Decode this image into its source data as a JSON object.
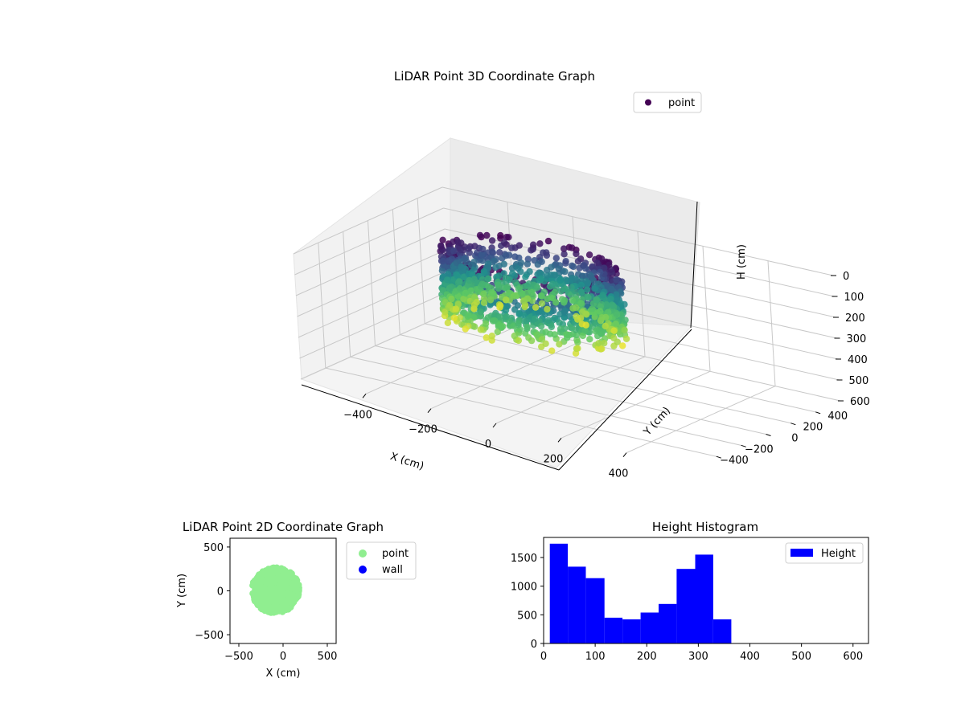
{
  "chart_data": [
    {
      "type": "scatter",
      "projection": "3d",
      "title": "LiDAR Point 3D Coordinate Graph",
      "xlabel": "X (cm)",
      "ylabel": "Y (cm)",
      "zlabel": "H (cm)",
      "xlim": [
        -600,
        600
      ],
      "ylim": [
        -600,
        600
      ],
      "zlim": [
        0,
        600
      ],
      "z_inverted": true,
      "xticks": [
        -400,
        -200,
        0,
        200,
        400
      ],
      "yticks": [
        -400,
        -200,
        0,
        200,
        400
      ],
      "zticks": [
        0,
        100,
        200,
        300,
        400,
        500,
        600
      ],
      "grid": true,
      "colormap": "viridis",
      "legend": {
        "position": "top-right",
        "entries": [
          {
            "label": "point",
            "color": "#440154"
          }
        ]
      },
      "series": [
        {
          "name": "point",
          "description_shape": "ring of points (circular wall) centered near X -100, Y 0, radius ~250 cm, spanning heights ~0–370 cm, colored by height"
        }
      ]
    },
    {
      "type": "scatter",
      "title": "LiDAR Point 2D Coordinate Graph",
      "xlabel": "X (cm)",
      "ylabel": "Y (cm)",
      "xlim": [
        -600,
        600
      ],
      "ylim": [
        -600,
        600
      ],
      "xticks": [
        -500,
        0,
        500
      ],
      "yticks": [
        -500,
        0,
        500
      ],
      "grid": false,
      "legend": {
        "position": "outside-right",
        "entries": [
          {
            "label": "point",
            "color": "#90ee90"
          },
          {
            "label": "wall",
            "color": "#0000ff"
          }
        ]
      },
      "series": [
        {
          "name": "point",
          "color": "#90ee90",
          "center": [
            -100,
            0
          ],
          "x_range": [
            -370,
            200
          ],
          "y_range": [
            -270,
            280
          ]
        },
        {
          "name": "wall",
          "color": "#0000ff",
          "x": [],
          "y": []
        }
      ]
    },
    {
      "type": "bar",
      "subtype": "histogram",
      "title": "Height Histogram",
      "xlabel": "",
      "ylabel": "",
      "xlim": [
        0,
        630
      ],
      "ylim": [
        0,
        1850
      ],
      "xticks": [
        0,
        100,
        200,
        300,
        400,
        500,
        600
      ],
      "yticks": [
        0,
        500,
        1000,
        1500
      ],
      "grid": false,
      "legend": {
        "position": "top-right",
        "entries": [
          {
            "label": "Height",
            "color": "#0000ff"
          }
        ]
      },
      "bin_edges": [
        12,
        47,
        82,
        118,
        153,
        188,
        223,
        258,
        294,
        329,
        364
      ],
      "series": [
        {
          "name": "Height",
          "color": "#0000ff",
          "values": [
            1740,
            1340,
            1140,
            450,
            420,
            540,
            690,
            1300,
            1550,
            420
          ]
        }
      ]
    }
  ]
}
